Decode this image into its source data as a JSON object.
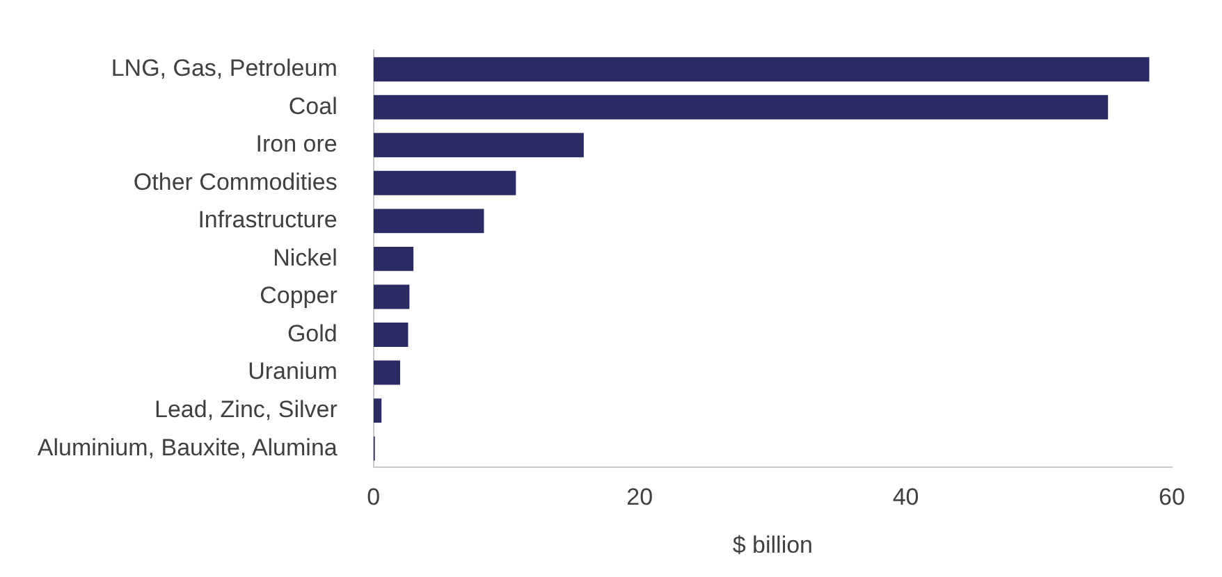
{
  "chart_data": {
    "type": "bar",
    "orientation": "horizontal",
    "xlabel": "$ billion",
    "categories": [
      "LNG, Gas, Petroleum",
      "Coal",
      "Iron ore",
      "Other Commodities",
      "Infrastructure",
      "Nickel",
      "Copper",
      "Gold",
      "Uranium",
      "Lead, Zinc, Silver",
      "Aluminium, Bauxite, Alumina"
    ],
    "values": [
      58.3,
      55.2,
      15.8,
      10.7,
      8.3,
      3.0,
      2.7,
      2.6,
      2.0,
      0.6,
      0.1
    ],
    "color": "#2a2a64",
    "xlim": [
      0,
      60
    ],
    "xticks": [
      0,
      20,
      40,
      60
    ],
    "grid": false,
    "legend": false
  }
}
